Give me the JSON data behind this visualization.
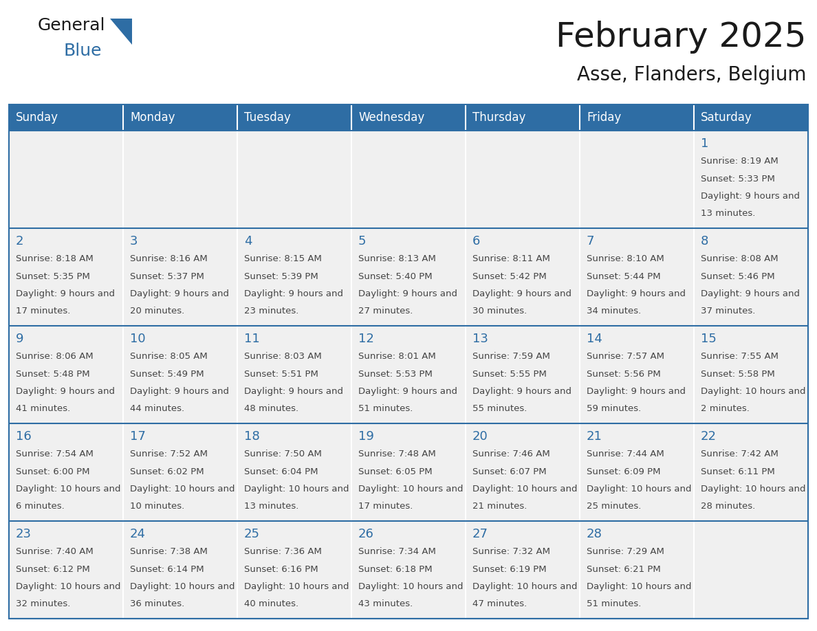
{
  "title": "February 2025",
  "subtitle": "Asse, Flanders, Belgium",
  "header_color": "#2E6DA4",
  "header_text_color": "#FFFFFF",
  "cell_bg_color": "#F0F0F0",
  "border_color": "#2E6DA4",
  "day_names": [
    "Sunday",
    "Monday",
    "Tuesday",
    "Wednesday",
    "Thursday",
    "Friday",
    "Saturday"
  ],
  "title_color": "#1a1a1a",
  "subtitle_color": "#1a1a1a",
  "day_number_color": "#2E6DA4",
  "info_text_color": "#444444",
  "logo_general_color": "#1a1a1a",
  "logo_blue_color": "#2E6DA4",
  "logo_triangle_color": "#2E6DA4",
  "weeks": [
    [
      null,
      null,
      null,
      null,
      null,
      null,
      1
    ],
    [
      2,
      3,
      4,
      5,
      6,
      7,
      8
    ],
    [
      9,
      10,
      11,
      12,
      13,
      14,
      15
    ],
    [
      16,
      17,
      18,
      19,
      20,
      21,
      22
    ],
    [
      23,
      24,
      25,
      26,
      27,
      28,
      null
    ]
  ],
  "day_data": {
    "1": {
      "sunrise": "8:19 AM",
      "sunset": "5:33 PM",
      "daylight": "9 hours and 13 minutes"
    },
    "2": {
      "sunrise": "8:18 AM",
      "sunset": "5:35 PM",
      "daylight": "9 hours and 17 minutes"
    },
    "3": {
      "sunrise": "8:16 AM",
      "sunset": "5:37 PM",
      "daylight": "9 hours and 20 minutes"
    },
    "4": {
      "sunrise": "8:15 AM",
      "sunset": "5:39 PM",
      "daylight": "9 hours and 23 minutes"
    },
    "5": {
      "sunrise": "8:13 AM",
      "sunset": "5:40 PM",
      "daylight": "9 hours and 27 minutes"
    },
    "6": {
      "sunrise": "8:11 AM",
      "sunset": "5:42 PM",
      "daylight": "9 hours and 30 minutes"
    },
    "7": {
      "sunrise": "8:10 AM",
      "sunset": "5:44 PM",
      "daylight": "9 hours and 34 minutes"
    },
    "8": {
      "sunrise": "8:08 AM",
      "sunset": "5:46 PM",
      "daylight": "9 hours and 37 minutes"
    },
    "9": {
      "sunrise": "8:06 AM",
      "sunset": "5:48 PM",
      "daylight": "9 hours and 41 minutes"
    },
    "10": {
      "sunrise": "8:05 AM",
      "sunset": "5:49 PM",
      "daylight": "9 hours and 44 minutes"
    },
    "11": {
      "sunrise": "8:03 AM",
      "sunset": "5:51 PM",
      "daylight": "9 hours and 48 minutes"
    },
    "12": {
      "sunrise": "8:01 AM",
      "sunset": "5:53 PM",
      "daylight": "9 hours and 51 minutes"
    },
    "13": {
      "sunrise": "7:59 AM",
      "sunset": "5:55 PM",
      "daylight": "9 hours and 55 minutes"
    },
    "14": {
      "sunrise": "7:57 AM",
      "sunset": "5:56 PM",
      "daylight": "9 hours and 59 minutes"
    },
    "15": {
      "sunrise": "7:55 AM",
      "sunset": "5:58 PM",
      "daylight": "10 hours and 2 minutes"
    },
    "16": {
      "sunrise": "7:54 AM",
      "sunset": "6:00 PM",
      "daylight": "10 hours and 6 minutes"
    },
    "17": {
      "sunrise": "7:52 AM",
      "sunset": "6:02 PM",
      "daylight": "10 hours and 10 minutes"
    },
    "18": {
      "sunrise": "7:50 AM",
      "sunset": "6:04 PM",
      "daylight": "10 hours and 13 minutes"
    },
    "19": {
      "sunrise": "7:48 AM",
      "sunset": "6:05 PM",
      "daylight": "10 hours and 17 minutes"
    },
    "20": {
      "sunrise": "7:46 AM",
      "sunset": "6:07 PM",
      "daylight": "10 hours and 21 minutes"
    },
    "21": {
      "sunrise": "7:44 AM",
      "sunset": "6:09 PM",
      "daylight": "10 hours and 25 minutes"
    },
    "22": {
      "sunrise": "7:42 AM",
      "sunset": "6:11 PM",
      "daylight": "10 hours and 28 minutes"
    },
    "23": {
      "sunrise": "7:40 AM",
      "sunset": "6:12 PM",
      "daylight": "10 hours and 32 minutes"
    },
    "24": {
      "sunrise": "7:38 AM",
      "sunset": "6:14 PM",
      "daylight": "10 hours and 36 minutes"
    },
    "25": {
      "sunrise": "7:36 AM",
      "sunset": "6:16 PM",
      "daylight": "10 hours and 40 minutes"
    },
    "26": {
      "sunrise": "7:34 AM",
      "sunset": "6:18 PM",
      "daylight": "10 hours and 43 minutes"
    },
    "27": {
      "sunrise": "7:32 AM",
      "sunset": "6:19 PM",
      "daylight": "10 hours and 47 minutes"
    },
    "28": {
      "sunrise": "7:29 AM",
      "sunset": "6:21 PM",
      "daylight": "10 hours and 51 minutes"
    }
  }
}
